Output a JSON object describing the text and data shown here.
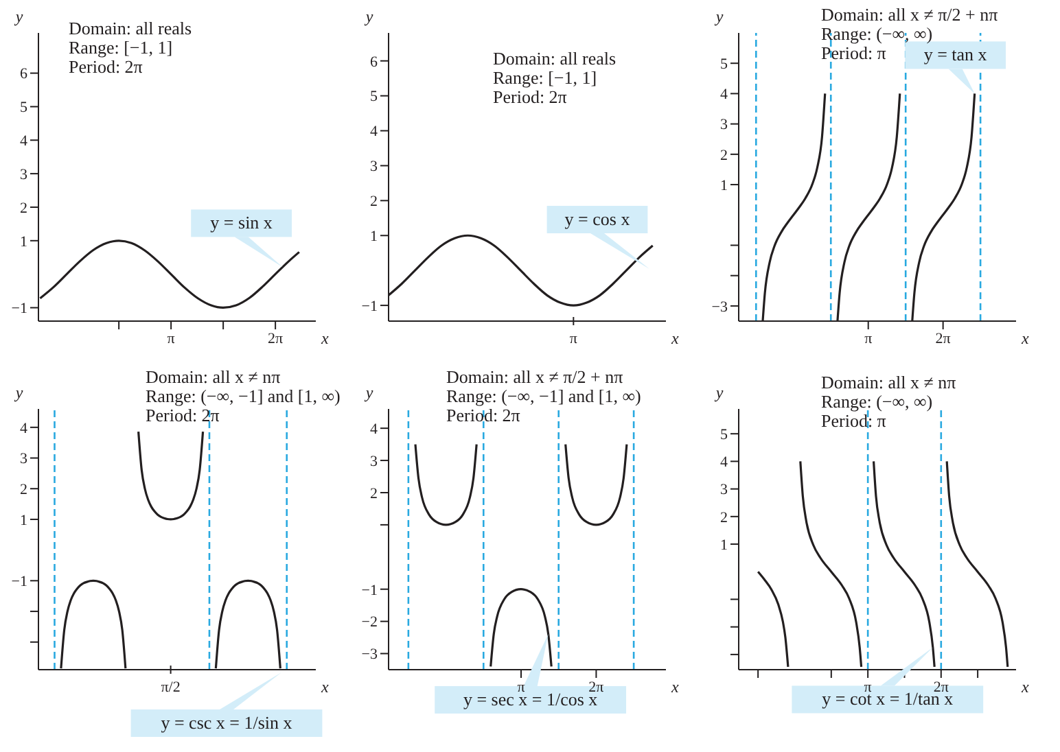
{
  "chart_data": [
    {
      "type": "line",
      "xlabel": "x",
      "ylabel": "y",
      "xlim": [
        -0.85,
        7.5
      ],
      "ylim": [
        -1.4,
        7.2
      ],
      "xticks": [
        {
          "value": 1.5708,
          "label": null
        },
        {
          "value": 3.1416,
          "label": "π"
        },
        {
          "value": 4.7124,
          "label": null
        },
        {
          "value": 6.2832,
          "label": "2π"
        }
      ],
      "yticks": [
        {
          "value": -1,
          "label": "−1"
        },
        1,
        2,
        3,
        4,
        5,
        6
      ],
      "series": [
        {
          "color": "#231f20",
          "x": [
            -0.8,
            -0.4,
            0,
            0.4,
            0.8,
            1.2,
            1.57,
            1.95,
            2.35,
            2.75,
            3.14,
            3.55,
            3.95,
            4.35,
            4.71,
            5.1,
            5.5,
            5.9,
            6.28,
            6.7,
            7.0
          ],
          "values": [
            -0.72,
            -0.39,
            0,
            0.39,
            0.72,
            0.93,
            1,
            0.93,
            0.71,
            0.38,
            0,
            -0.4,
            -0.72,
            -0.93,
            -1,
            -0.93,
            -0.71,
            -0.37,
            0,
            0.4,
            0.66
          ]
        }
      ],
      "annotations": [
        "Domain: all reals",
        "Range: [−1, 1]",
        "Period: 2π",
        {
          "text": "y = sin x",
          "x": 6.5,
          "y": 0.21
        }
      ]
    },
    {
      "type": "line",
      "xlabel": "x",
      "ylabel": "y",
      "categories": [
        null,
        null,
        null,
        null,
        null,
        null,
        null,
        null,
        null,
        null,
        null,
        null,
        null,
        null,
        "π",
        null,
        null,
        null,
        null,
        null,
        null,
        null
      ],
      "ylim": [
        -1.45,
        6.8
      ],
      "yticks": [
        {
          "value": -1,
          "label": "−1"
        },
        1,
        2,
        3,
        4,
        5,
        6
      ],
      "series": [
        {
          "color": "#231f20",
          "values": [
            -0.71,
            -0.38,
            0,
            0.38,
            0.71,
            0.92,
            1,
            0.92,
            0.71,
            0.38,
            0,
            -0.38,
            -0.71,
            -0.92,
            -1,
            -0.92,
            -0.71,
            -0.38,
            0,
            0.38,
            0.71,
            null
          ]
        }
      ],
      "annotations": [
        "Domain: all reals",
        "Range: [−1, 1]",
        "Period: 2π",
        "y = cos x"
      ]
    },
    {
      "type": "line",
      "xlabel": "x",
      "ylabel": "y",
      "xlim": [
        -2.3,
        9.35
      ],
      "ylim": [
        -3.5,
        6
      ],
      "xticks": [
        {
          "value": 3.1416,
          "label": "π"
        },
        {
          "value": 6.2832,
          "label": "2π"
        }
      ],
      "yticks": [
        {
          "value": -3,
          "label": "−3"
        },
        {
          "value": -2,
          "label": null
        },
        {
          "value": -1,
          "label": null
        },
        1,
        2,
        3,
        4,
        5
      ],
      "series": [
        {
          "color": "#231f20",
          "x": [
            -1.29,
            -1.2,
            -1.0,
            -0.8,
            -0.5,
            -0.25,
            0,
            0.25,
            0.5,
            0.8,
            1.0,
            1.2,
            1.326,
            1.5708,
            1.85,
            1.94,
            2.14,
            2.34,
            2.64,
            2.89,
            3.14,
            3.39,
            3.64,
            3.94,
            4.14,
            4.34,
            4.47,
            4.7124,
            4.99,
            5.08,
            5.28,
            5.48,
            5.78,
            6.03,
            6.28,
            6.53,
            6.78,
            7.08,
            7.28,
            7.48,
            7.61
          ],
          "values": [
            -3.49,
            -2.57,
            -1.56,
            -1.03,
            -0.55,
            -0.26,
            0,
            0.26,
            0.55,
            1.03,
            1.56,
            2.57,
            4.0,
            null,
            -3.49,
            -2.57,
            -1.56,
            -1.03,
            -0.55,
            -0.26,
            0,
            0.26,
            0.55,
            1.03,
            1.56,
            2.57,
            4.0,
            null,
            -3.49,
            -2.57,
            -1.56,
            -1.03,
            -0.55,
            -0.26,
            0,
            0.26,
            0.55,
            1.03,
            1.56,
            2.57,
            4.0
          ]
        }
      ],
      "ref_lines": [
        {
          "axis": "x",
          "value": -1.5708,
          "color": "#29a9e0",
          "line_style": "dashed"
        },
        {
          "axis": "x",
          "value": 1.5708,
          "color": "#29a9e0",
          "line_style": "dashed"
        },
        {
          "axis": "x",
          "value": 4.7124,
          "color": "#29a9e0",
          "line_style": "dashed"
        },
        {
          "axis": "x",
          "value": 7.854,
          "color": "#29a9e0",
          "line_style": "dashed"
        }
      ],
      "annotations": [
        "Domain: all x ≠ π/2 + nπ",
        "Range: (−∞, ∞)",
        "Period: π",
        {
          "text": "y = tan x",
          "x": 7.61,
          "y": 4.0
        }
      ]
    },
    {
      "type": "line",
      "xlabel": "x",
      "ylabel": "y",
      "categories": [
        null,
        null,
        null,
        null,
        null,
        null,
        null,
        null,
        null,
        null,
        null,
        null,
        null,
        null,
        null,
        null,
        null,
        null,
        null,
        null,
        null,
        null,
        null,
        null,
        null,
        null,
        null,
        null,
        null,
        null,
        null,
        null,
        null,
        null,
        null,
        null,
        null,
        null,
        null,
        null,
        null,
        "π/2",
        null,
        null,
        null,
        null,
        null,
        null,
        null,
        null,
        null,
        null,
        null,
        null,
        null,
        null,
        null,
        null,
        null,
        null,
        null,
        null,
        null,
        null,
        null,
        null,
        null,
        null,
        null,
        null,
        null,
        null,
        null,
        null,
        null,
        null,
        null,
        null,
        null,
        null,
        null,
        null,
        null,
        null,
        null,
        null,
        null
      ],
      "ylim": [
        -3.9,
        4.6
      ],
      "yticks": [
        {
          "value": -3,
          "label": null
        },
        {
          "value": -2,
          "label": null
        },
        {
          "value": -1,
          "label": "−1"
        },
        1,
        2,
        3,
        4
      ],
      "series": [
        {
          "color": "#231f20",
          "values": [
            null,
            null,
            null,
            null,
            null,
            null,
            null,
            -3.86,
            -2.61,
            -2,
            -1.64,
            -1.41,
            -1.26,
            -1.15,
            -1.08,
            -1.04,
            -1.01,
            -1,
            -1.01,
            -1.04,
            -1.08,
            -1.15,
            -1.26,
            -1.41,
            -1.64,
            -2,
            -2.61,
            -3.86,
            null,
            null,
            null,
            3.86,
            2.61,
            2,
            1.64,
            1.41,
            1.26,
            1.15,
            1.08,
            1.04,
            1.01,
            1,
            1.01,
            1.04,
            1.08,
            1.15,
            1.26,
            1.41,
            1.64,
            2,
            2.61,
            3.86,
            null,
            null,
            null,
            -3.86,
            -2.61,
            -2,
            -1.64,
            -1.41,
            -1.26,
            -1.15,
            -1.08,
            -1.04,
            -1.01,
            -1,
            -1.01,
            -1.04,
            -1.08,
            -1.15,
            -1.26,
            -1.41,
            -1.64,
            -2,
            -2.61,
            -3.86,
            null,
            null,
            null,
            null,
            null,
            null,
            null,
            null,
            null,
            null,
            null
          ]
        }
      ],
      "annotations": [
        "Domain: all x ≠ nπ",
        "Range: (−∞, −1] and [1, ∞)",
        "Period: 2π",
        "y = csc x = 1/sin x"
      ]
    },
    {
      "type": "line",
      "xlabel": "x",
      "ylabel": "y",
      "xlim": [
        -2.4,
        9.2
      ],
      "ylim": [
        -3.5,
        4.6
      ],
      "xticks": [
        {
          "value": 3.1416,
          "label": "π"
        },
        {
          "value": 6.2832,
          "label": "2π"
        }
      ],
      "yticks": [
        {
          "value": -3,
          "label": "−3"
        },
        {
          "value": -2,
          "label": "−2"
        },
        {
          "value": -1,
          "label": "−1"
        },
        {
          "value": 1,
          "label": null
        },
        2,
        3,
        4
      ],
      "series": [
        {
          "color": "#231f20",
          "x": [
            -1.28,
            -1.15,
            -1.0,
            -0.7,
            -0.4,
            0,
            0.4,
            0.7,
            1.0,
            1.15,
            1.28,
            1.5708,
            1.87,
            2.0,
            2.14,
            2.44,
            2.74,
            3.14,
            3.54,
            3.84,
            4.14,
            4.28,
            4.41,
            4.7124,
            5.0,
            5.13,
            5.28,
            5.58,
            5.88,
            6.28,
            6.68,
            6.98,
            7.28,
            7.43,
            7.56
          ],
          "values": [
            3.5,
            2.45,
            1.85,
            1.31,
            1.09,
            1,
            1.09,
            1.31,
            1.85,
            2.45,
            3.5,
            null,
            -3.4,
            -2.39,
            -1.85,
            -1.31,
            -1.09,
            -1,
            -1.09,
            -1.31,
            -1.85,
            -2.39,
            -3.4,
            null,
            3.5,
            2.45,
            1.85,
            1.31,
            1.09,
            1,
            1.09,
            1.31,
            1.85,
            2.45,
            3.5
          ]
        }
      ],
      "ref_lines": [
        {
          "axis": "x",
          "value": -1.5708,
          "color": "#29a9e0",
          "line_style": "dashed"
        },
        {
          "axis": "x",
          "value": 1.5708,
          "color": "#29a9e0",
          "line_style": "dashed"
        },
        {
          "axis": "x",
          "value": 4.7124,
          "color": "#29a9e0",
          "line_style": "dashed"
        },
        {
          "axis": "x",
          "value": 7.854,
          "color": "#29a9e0",
          "line_style": "dashed"
        }
      ],
      "annotations": [
        "Domain: all x ≠ π/2 + nπ",
        "Range: (−∞, −1] and [1, ∞)",
        "Period: 2π",
        {
          "text": "y = sec x = 1/cos x",
          "x": 4.28,
          "y": -2.39
        }
      ]
    },
    {
      "type": "line",
      "xlabel": "x",
      "ylabel": "y",
      "xlim": [
        -2.4,
        9.5
      ],
      "ylim": [
        -3.55,
        5.9
      ],
      "xticks": [
        {
          "value": -1.5708,
          "label": null
        },
        {
          "value": 1.5708,
          "label": null
        },
        {
          "value": 3.1416,
          "label": "π"
        },
        {
          "value": 4.7124,
          "label": null
        },
        {
          "value": 6.2832,
          "label": "2π"
        },
        {
          "value": 7.854,
          "label": null
        }
      ],
      "yticks": [
        {
          "value": -3,
          "label": null
        },
        {
          "value": -2,
          "label": null
        },
        {
          "value": -1,
          "label": null
        },
        1,
        2,
        3,
        4,
        5
      ],
      "series": [
        {
          "color": "#231f20",
          "x": [
            -1.57,
            -1.3,
            -1.0,
            -0.7,
            -0.5,
            -0.4,
            -0.282,
            0,
            0.245,
            0.35,
            0.5,
            0.8,
            1.1,
            1.57,
            2.04,
            2.34,
            2.64,
            2.79,
            2.86,
            3.1416,
            3.39,
            3.49,
            3.64,
            3.94,
            4.24,
            4.71,
            5.18,
            5.48,
            5.78,
            5.93,
            6.0,
            6.2832,
            6.53,
            6.63,
            6.78,
            7.08,
            7.38,
            7.85,
            8.32,
            8.62,
            8.92,
            9.07,
            9.14
          ],
          "values": [
            0,
            -0.28,
            -0.64,
            -1.19,
            -1.83,
            -2.37,
            -3.45,
            null,
            4,
            2.74,
            1.83,
            0.97,
            0.51,
            0,
            -0.51,
            -0.97,
            -1.83,
            -2.74,
            -3.45,
            null,
            4,
            2.74,
            1.83,
            0.97,
            0.51,
            0,
            -0.51,
            -0.97,
            -1.83,
            -2.74,
            -3.45,
            null,
            4,
            2.74,
            1.83,
            0.97,
            0.51,
            0,
            -0.51,
            -0.97,
            -1.83,
            -2.74,
            -3.45
          ]
        }
      ],
      "ref_lines": [
        {
          "axis": "x",
          "value": 3.1416,
          "color": "#29a9e0",
          "line_style": "dashed"
        },
        {
          "axis": "x",
          "value": 6.2832,
          "color": "#29a9e0",
          "line_style": "dashed"
        }
      ],
      "annotations": [
        "Domain: all x ≠ nπ",
        "Range: (−∞, ∞)",
        "Period: π",
        {
          "text": "y = cot x = 1/tan x",
          "x": 5.93,
          "y": -2.74
        }
      ]
    }
  ]
}
